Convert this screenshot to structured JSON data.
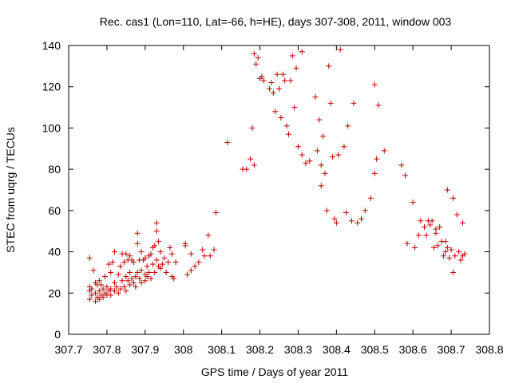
{
  "chart_data": {
    "type": "scatter",
    "title": "Rec. cas1 (Lon=110, Lat=-66, h=HE), days 307-308, 2011, window 003",
    "xlabel": "GPS time / Days of year 2011",
    "ylabel": "STEC from uqrg / TECUs",
    "xlim": [
      307.7,
      308.8
    ],
    "ylim": [
      0,
      140
    ],
    "xticks": [
      307.7,
      307.8,
      307.9,
      308.0,
      308.1,
      308.2,
      308.3,
      308.4,
      308.5,
      308.6,
      308.7,
      308.8
    ],
    "xtick_labels": [
      "307.7",
      "307.8",
      "307.9",
      "308",
      "308.1",
      "308.2",
      "308.3",
      "308.4",
      "308.5",
      "308.6",
      "308.7",
      "308.8"
    ],
    "yticks": [
      0,
      20,
      40,
      60,
      80,
      100,
      120,
      140
    ],
    "ytick_labels": [
      "0",
      "20",
      "40",
      "60",
      "80",
      "100",
      "120",
      "140"
    ],
    "grid": false,
    "legend": "none",
    "marker": "plus",
    "color": "#c00000",
    "points": [
      [
        307.755,
        37
      ],
      [
        307.755,
        23
      ],
      [
        307.755,
        21
      ],
      [
        307.755,
        17
      ],
      [
        307.76,
        22
      ],
      [
        307.76,
        19
      ],
      [
        307.765,
        31
      ],
      [
        307.77,
        25
      ],
      [
        307.77,
        20
      ],
      [
        307.77,
        16
      ],
      [
        307.775,
        24
      ],
      [
        307.775,
        18
      ],
      [
        307.78,
        26
      ],
      [
        307.78,
        21
      ],
      [
        307.78,
        17
      ],
      [
        307.785,
        24
      ],
      [
        307.785,
        19
      ],
      [
        307.79,
        22
      ],
      [
        307.79,
        18
      ],
      [
        307.795,
        28
      ],
      [
        307.795,
        20
      ],
      [
        307.8,
        23
      ],
      [
        307.8,
        19
      ],
      [
        307.805,
        34
      ],
      [
        307.805,
        21
      ],
      [
        307.81,
        30
      ],
      [
        307.81,
        22
      ],
      [
        307.81,
        19
      ],
      [
        307.815,
        35
      ],
      [
        307.82,
        40
      ],
      [
        307.82,
        25
      ],
      [
        307.82,
        21
      ],
      [
        307.825,
        23
      ],
      [
        307.83,
        29
      ],
      [
        307.83,
        20
      ],
      [
        307.835,
        33
      ],
      [
        307.835,
        22
      ],
      [
        307.84,
        39
      ],
      [
        307.84,
        26
      ],
      [
        307.845,
        35
      ],
      [
        307.845,
        23
      ],
      [
        307.85,
        39
      ],
      [
        307.85,
        28
      ],
      [
        307.85,
        21
      ],
      [
        307.855,
        36
      ],
      [
        307.855,
        26
      ],
      [
        307.86,
        38
      ],
      [
        307.86,
        30
      ],
      [
        307.86,
        24
      ],
      [
        307.865,
        36
      ],
      [
        307.865,
        27
      ],
      [
        307.87,
        35
      ],
      [
        307.87,
        25
      ],
      [
        307.875,
        28
      ],
      [
        307.875,
        23
      ],
      [
        307.88,
        49
      ],
      [
        307.88,
        44
      ],
      [
        307.88,
        30
      ],
      [
        307.885,
        36
      ],
      [
        307.885,
        27
      ],
      [
        307.89,
        40
      ],
      [
        307.89,
        31
      ],
      [
        307.89,
        25
      ],
      [
        307.895,
        36
      ],
      [
        307.9,
        37
      ],
      [
        307.9,
        29
      ],
      [
        307.9,
        26
      ],
      [
        307.905,
        33
      ],
      [
        307.905,
        28
      ],
      [
        307.91,
        38
      ],
      [
        307.91,
        30
      ],
      [
        307.915,
        39
      ],
      [
        307.915,
        27
      ],
      [
        307.92,
        42
      ],
      [
        307.92,
        34
      ],
      [
        307.925,
        43
      ],
      [
        307.925,
        30
      ],
      [
        307.93,
        50
      ],
      [
        307.93,
        54
      ],
      [
        307.93,
        36
      ],
      [
        307.935,
        45
      ],
      [
        307.935,
        33
      ],
      [
        307.94,
        40
      ],
      [
        307.94,
        32
      ],
      [
        307.945,
        34
      ],
      [
        307.95,
        37
      ],
      [
        307.955,
        30
      ],
      [
        307.96,
        35
      ],
      [
        307.965,
        42
      ],
      [
        307.97,
        39
      ],
      [
        307.97,
        28
      ],
      [
        307.975,
        27
      ],
      [
        307.98,
        35
      ],
      [
        308.005,
        43
      ],
      [
        308.005,
        44
      ],
      [
        308.01,
        29
      ],
      [
        308.02,
        39
      ],
      [
        308.02,
        31
      ],
      [
        308.03,
        33
      ],
      [
        308.04,
        35
      ],
      [
        308.05,
        41
      ],
      [
        308.055,
        38
      ],
      [
        308.065,
        48
      ],
      [
        308.07,
        38
      ],
      [
        308.08,
        41
      ],
      [
        308.085,
        59
      ],
      [
        308.115,
        93
      ],
      [
        308.155,
        80
      ],
      [
        308.165,
        80
      ],
      [
        308.175,
        85
      ],
      [
        308.18,
        100
      ],
      [
        308.185,
        136
      ],
      [
        308.185,
        82
      ],
      [
        308.19,
        131
      ],
      [
        308.195,
        134
      ],
      [
        308.2,
        124
      ],
      [
        308.205,
        125
      ],
      [
        308.21,
        123
      ],
      [
        308.225,
        119
      ],
      [
        308.23,
        122
      ],
      [
        308.235,
        117
      ],
      [
        308.24,
        108
      ],
      [
        308.245,
        126
      ],
      [
        308.25,
        119
      ],
      [
        308.255,
        105
      ],
      [
        308.26,
        126
      ],
      [
        308.265,
        123
      ],
      [
        308.27,
        101
      ],
      [
        308.275,
        97
      ],
      [
        308.28,
        123
      ],
      [
        308.285,
        135
      ],
      [
        308.29,
        110
      ],
      [
        308.295,
        129
      ],
      [
        308.3,
        91
      ],
      [
        308.31,
        137
      ],
      [
        308.31,
        87
      ],
      [
        308.32,
        83
      ],
      [
        308.33,
        84
      ],
      [
        308.345,
        115
      ],
      [
        308.35,
        89
      ],
      [
        308.355,
        104
      ],
      [
        308.36,
        82
      ],
      [
        308.36,
        72
      ],
      [
        308.365,
        96
      ],
      [
        308.37,
        78
      ],
      [
        308.375,
        60
      ],
      [
        308.38,
        130
      ],
      [
        308.385,
        112
      ],
      [
        308.39,
        86
      ],
      [
        308.395,
        56
      ],
      [
        308.4,
        54
      ],
      [
        308.405,
        87
      ],
      [
        308.41,
        138
      ],
      [
        308.42,
        91
      ],
      [
        308.425,
        59
      ],
      [
        308.43,
        101
      ],
      [
        308.44,
        55
      ],
      [
        308.445,
        112
      ],
      [
        308.455,
        54
      ],
      [
        308.465,
        56
      ],
      [
        308.475,
        60
      ],
      [
        308.49,
        66
      ],
      [
        308.5,
        121
      ],
      [
        308.5,
        78
      ],
      [
        308.505,
        85
      ],
      [
        308.51,
        111
      ],
      [
        308.525,
        89
      ],
      [
        308.57,
        82
      ],
      [
        308.58,
        77
      ],
      [
        308.585,
        44
      ],
      [
        308.6,
        64
      ],
      [
        308.605,
        42
      ],
      [
        308.615,
        48
      ],
      [
        308.62,
        55
      ],
      [
        308.63,
        52
      ],
      [
        308.635,
        48
      ],
      [
        308.64,
        55
      ],
      [
        308.645,
        53
      ],
      [
        308.65,
        55
      ],
      [
        308.655,
        42
      ],
      [
        308.66,
        51
      ],
      [
        308.66,
        49
      ],
      [
        308.665,
        43
      ],
      [
        308.67,
        52
      ],
      [
        308.675,
        45
      ],
      [
        308.68,
        38
      ],
      [
        308.685,
        45
      ],
      [
        308.685,
        40
      ],
      [
        308.69,
        70
      ],
      [
        308.69,
        42
      ],
      [
        308.695,
        37
      ],
      [
        308.7,
        41
      ],
      [
        308.705,
        66
      ],
      [
        308.705,
        30
      ],
      [
        308.71,
        38
      ],
      [
        308.715,
        58
      ],
      [
        308.72,
        40
      ],
      [
        308.725,
        36
      ],
      [
        308.73,
        54
      ],
      [
        308.73,
        38
      ],
      [
        308.735,
        39
      ]
    ]
  }
}
